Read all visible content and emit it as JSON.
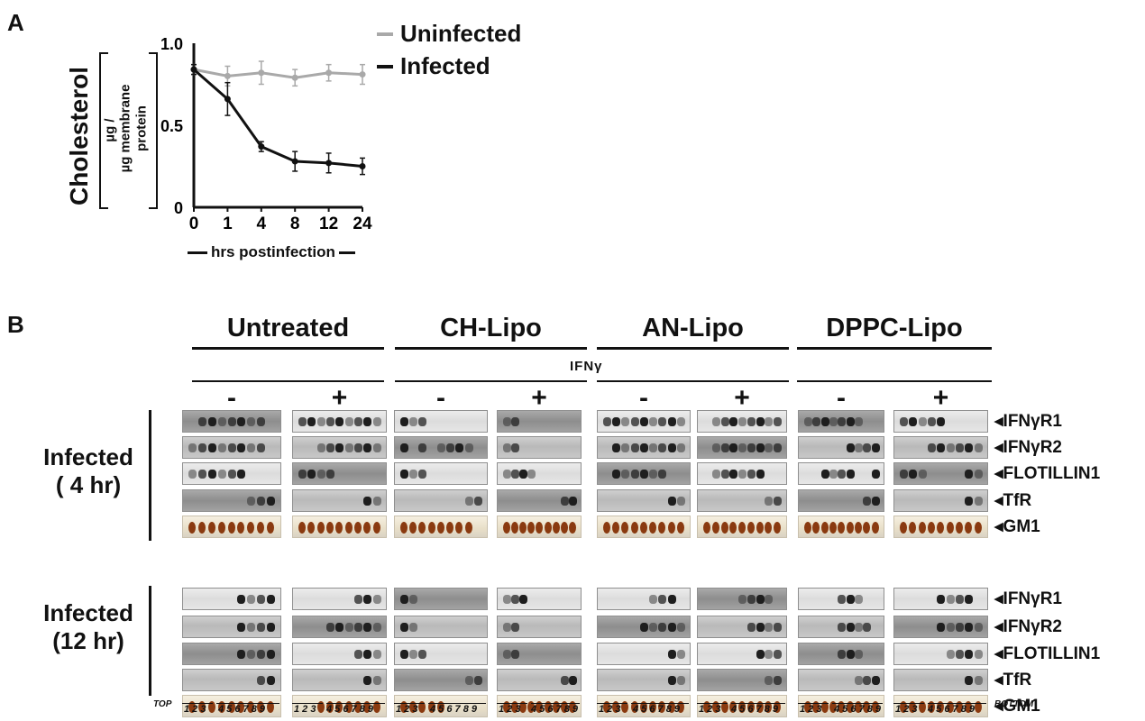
{
  "panel_a": {
    "letter": "A",
    "ylabel_main": "Cholesterol",
    "ylabel_unit_top": "µg /",
    "ylabel_unit_bottom_1": "µg  membrane",
    "ylabel_unit_bottom_2": "protein",
    "xlabel": "hrs postinfection",
    "legend": [
      "Uninfected",
      "Infected"
    ]
  },
  "chart_data": {
    "type": "line",
    "x": [
      "0",
      "1",
      "4",
      "8",
      "12",
      "24"
    ],
    "ylim": [
      0,
      1.0
    ],
    "yticks": [
      "1.0",
      "0.5",
      "0"
    ],
    "series": [
      {
        "name": "Uninfected",
        "color": "#a9a9a9",
        "values": [
          0.84,
          0.8,
          0.82,
          0.79,
          0.82,
          0.81
        ],
        "errors": [
          0.03,
          0.06,
          0.07,
          0.05,
          0.05,
          0.06
        ]
      },
      {
        "name": "Infected",
        "color": "#111111",
        "values": [
          0.84,
          0.66,
          0.37,
          0.28,
          0.27,
          0.25
        ],
        "errors": [
          0.03,
          0.1,
          0.03,
          0.06,
          0.06,
          0.05
        ]
      }
    ],
    "grid": false,
    "legend_position": "top-right (outside)"
  },
  "panel_b": {
    "letter": "B",
    "conditions": [
      "Untreated",
      "CH-Lipo",
      "AN-Lipo",
      "DPPC-Lipo"
    ],
    "ifn_label": "IFNγ",
    "signs": [
      "-",
      "+",
      "-",
      "+",
      "-",
      "+",
      "-",
      "+"
    ],
    "groups": [
      {
        "label_line1": "Infected",
        "label_line2": "( 4 hr)"
      },
      {
        "label_line1": "Infected",
        "label_line2": "(12 hr)"
      }
    ],
    "proteins": [
      "IFNγR1",
      "IFNγR2",
      "FLOTILLIN1",
      "TfR",
      "GM1"
    ],
    "fraction_top": "TOP",
    "fraction_bottom": "BOTTOM",
    "fraction_groups": [
      "1 2 3",
      "4 5 6 7 8 9"
    ]
  }
}
